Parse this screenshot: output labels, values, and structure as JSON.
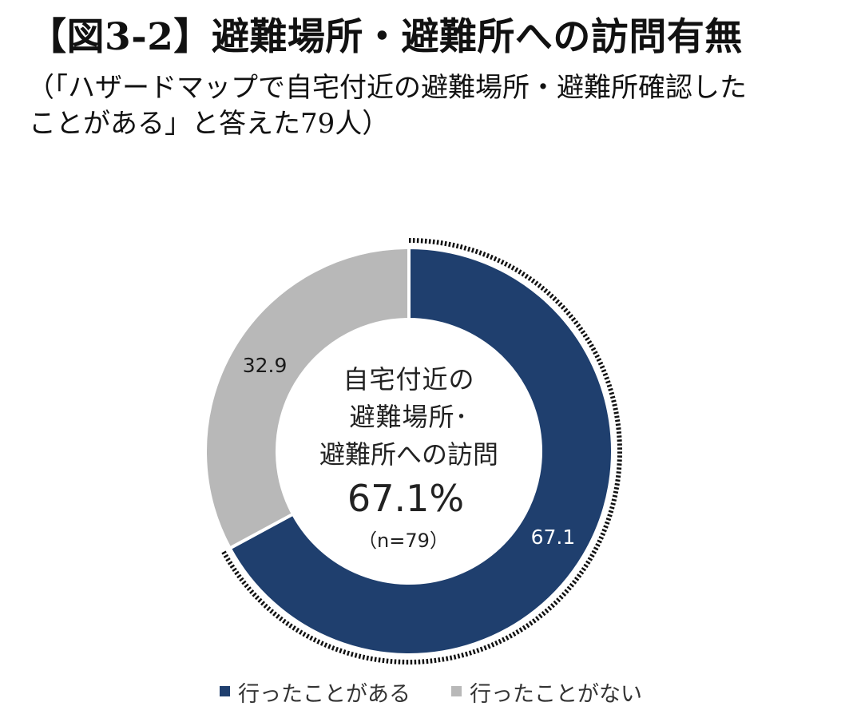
{
  "chart_data": {
    "type": "pie",
    "donut": true,
    "title": "【図3-2】避難場所・避難所への訪問有無",
    "subtitle": [
      "（「ハザードマップで自宅付近の避難場所・避難所確認した",
      "ことがある」と答えた79人）"
    ],
    "categories": [
      "行ったことがある",
      "行ったことがない"
    ],
    "values": [
      67.1,
      32.9
    ],
    "data_labels": [
      "67.1",
      "32.9"
    ],
    "colors": [
      "#1f3f6e",
      "#b8b8b8"
    ],
    "center_label": [
      "自宅付近の",
      "避難場所･",
      "避難所への訪問"
    ],
    "center_value": "67.1%",
    "center_note": "（n=79）",
    "legend": "bottom"
  }
}
